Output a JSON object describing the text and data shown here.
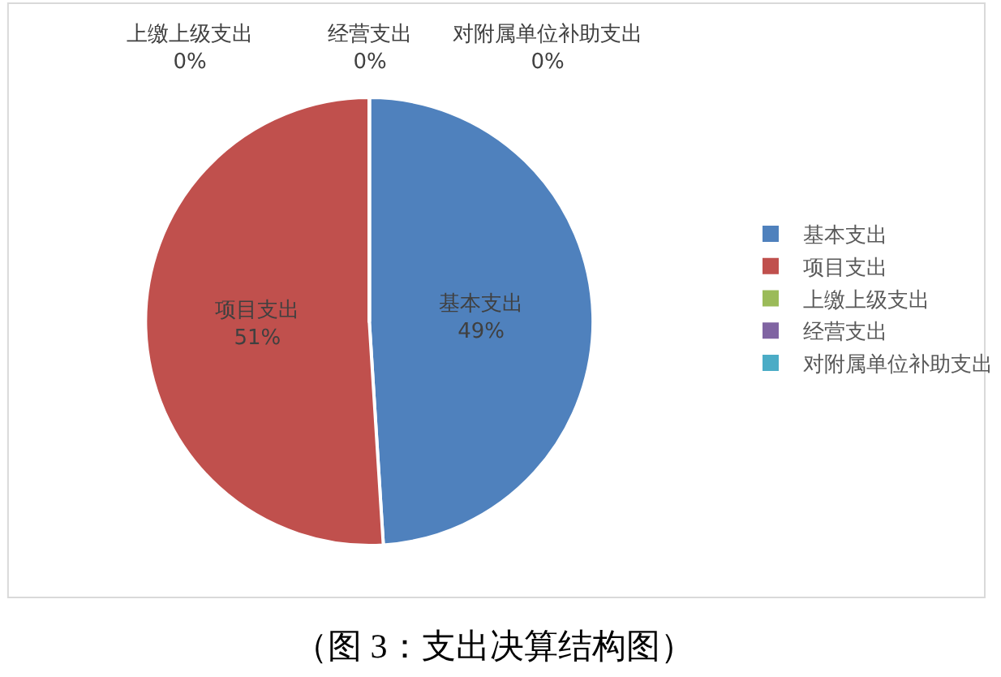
{
  "chart_data": {
    "type": "pie",
    "categories": [
      "基本支出",
      "项目支出",
      "上缴上级支出",
      "经营支出",
      "对附属单位补助支出"
    ],
    "values": [
      49,
      51,
      0,
      0,
      0
    ],
    "colors": [
      "#4f81bd",
      "#c0504d",
      "#9bbb59",
      "#8064a2",
      "#4bacc6"
    ],
    "value_labels": [
      "49%",
      "51%",
      "0%",
      "0%",
      "0%"
    ],
    "legend": "right",
    "annotations": [
      "（图 3：支出决算结构图）"
    ]
  }
}
